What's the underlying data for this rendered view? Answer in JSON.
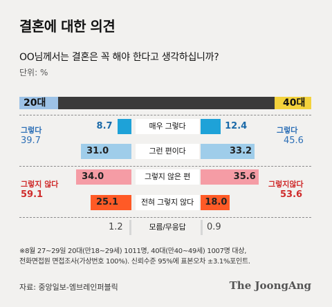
{
  "title": "결혼에 대한 의견",
  "subtitle": "OO님께서는 결혼은 꼭 해야 한다고 생각하십니까?",
  "unit": "단위: %",
  "chart_data": {
    "type": "bar",
    "layout": "butterfly",
    "categories": [
      "매우 그렇다",
      "그런 편이다",
      "그렇지 않은 편",
      "전혀 그렇지 않다",
      "모름/무응답"
    ],
    "series": [
      {
        "name": "20대",
        "values": [
          8.7,
          31.0,
          34.0,
          25.1,
          1.2
        ]
      },
      {
        "name": "40대",
        "values": [
          12.4,
          33.2,
          35.6,
          18.0,
          0.9
        ]
      }
    ],
    "groups": {
      "yes": {
        "label": "그렇다",
        "left": "39.7",
        "right": "45.6"
      },
      "no": {
        "left_label": "그렇지 않다",
        "right_label": "그렇지않다",
        "left": "59.1",
        "right": "53.6"
      }
    },
    "colors": [
      "#1ea2d8",
      "#9fcdea",
      "#f59ca5",
      "#ff5a26",
      "#d7d7d7"
    ],
    "topbar_color": "#3a3a3a",
    "left_tag_color": "#9dc2e6",
    "right_tag_color": "#f3d23c"
  },
  "notes": [
    "※8월 27~29일 20대(만18~29세) 1011명, 40대(만40~49세) 1007명 대상,",
    "전화면접원 면접조사(가상번호 100%). 신뢰수준 95%에 표본오차 ±3.1%포인트."
  ],
  "source": "자료: 중앙일보-엠브레인퍼블릭",
  "brand": "The JoongAng"
}
